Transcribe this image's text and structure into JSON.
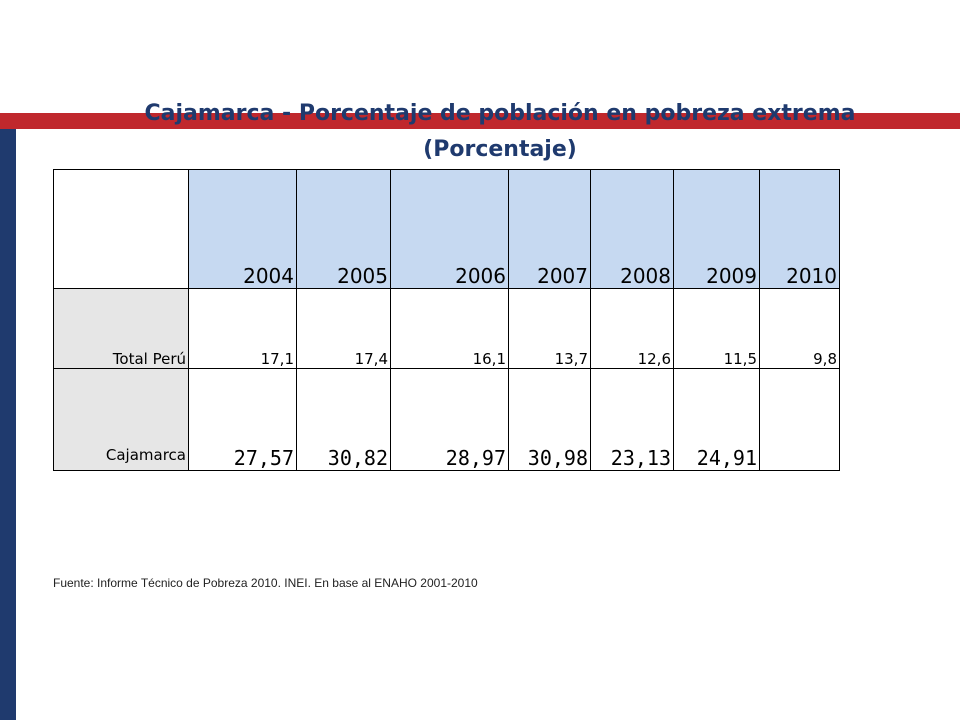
{
  "title": {
    "line1": "Cajamarca - Porcentaje de población en pobreza extrema",
    "line2": "(Porcentaje)"
  },
  "table": {
    "years": [
      "2004",
      "2005",
      "2006",
      "2007",
      "2008",
      "2009",
      "2010"
    ],
    "rows": [
      {
        "label": "Total Perú",
        "values": [
          "17,1",
          "17,4",
          "16,1",
          "13,7",
          "12,6",
          "11,5",
          "9,8"
        ]
      },
      {
        "label": "Cajamarca",
        "values": [
          "27,57",
          "30,82",
          "28,97",
          "30,98",
          "23,13",
          "24,91",
          ""
        ]
      }
    ]
  },
  "source": "Fuente: Informe Técnico de Pobreza 2010. INEI. En base al ENAHO 2001-2010",
  "colors": {
    "accent_red": "#c0282d",
    "accent_blue": "#1f3a6e",
    "header_fill": "#c6d9f1",
    "label_fill": "#e6e6e6"
  }
}
